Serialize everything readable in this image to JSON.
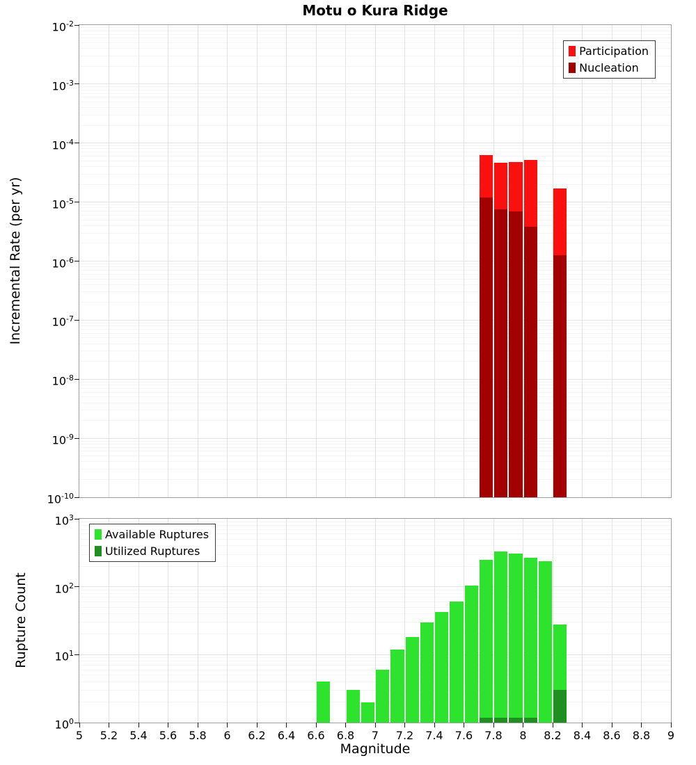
{
  "title": "Motu o Kura Ridge",
  "chart_data": [
    {
      "type": "bar",
      "title": "Motu o Kura Ridge",
      "ylabel": "Incremental Rate (per yr)",
      "xlabel": "",
      "yscale": "log",
      "ylim": [
        1e-10,
        0.01
      ],
      "xlim": [
        5,
        9
      ],
      "bar_width": 0.1,
      "grid": true,
      "legend_position": "top-right",
      "y_tick_labels": [
        "10^-2",
        "10^-3",
        "10^-4",
        "10^-5",
        "10^-6",
        "10^-7",
        "10^-8",
        "10^-9",
        "10^-10"
      ],
      "series": [
        {
          "name": "Participation",
          "slug": "participation",
          "color": "#fb1010",
          "x": [
            7.75,
            7.85,
            7.95,
            8.05,
            8.25
          ],
          "values": [
            6.2e-05,
            4.6e-05,
            4.8e-05,
            5.2e-05,
            1.7e-05
          ]
        },
        {
          "name": "Nucleation",
          "slug": "nucleation",
          "color": "#a30000",
          "x": [
            7.75,
            7.85,
            7.95,
            8.05,
            8.25
          ],
          "values": [
            1.2e-05,
            7.5e-06,
            7e-06,
            3.8e-06,
            1.25e-06
          ]
        }
      ]
    },
    {
      "type": "bar",
      "ylabel": "Rupture Count",
      "xlabel": "Magnitude",
      "yscale": "log",
      "ylim": [
        1,
        1000
      ],
      "xlim": [
        5,
        9
      ],
      "bar_width": 0.1,
      "grid": true,
      "legend_position": "top-left",
      "y_tick_labels": [
        "10^3",
        "10^2",
        "10^1",
        "10^0"
      ],
      "x_tick_step": 0.2,
      "x_tick_labels": [
        "5",
        "5.2",
        "5.4",
        "5.6",
        "5.8",
        "6",
        "6.2",
        "6.4",
        "6.6",
        "6.8",
        "7",
        "7.2",
        "7.4",
        "7.6",
        "7.8",
        "8",
        "8.2",
        "8.4",
        "8.6",
        "8.8",
        "9"
      ],
      "series": [
        {
          "name": "Available Ruptures",
          "slug": "available-ruptures",
          "color": "#2ee32e",
          "x": [
            6.65,
            6.85,
            6.95,
            7.05,
            7.15,
            7.25,
            7.35,
            7.45,
            7.55,
            7.65,
            7.75,
            7.85,
            7.95,
            8.05,
            8.15,
            8.25
          ],
          "values": [
            4,
            3,
            2,
            6,
            12,
            18,
            30,
            42,
            60,
            105,
            250,
            330,
            305,
            265,
            240,
            28
          ]
        },
        {
          "name": "Utilized Ruptures",
          "slug": "utilized-ruptures",
          "color": "#1f8f1f",
          "x": [
            7.75,
            7.85,
            7.95,
            8.05,
            8.25
          ],
          "values": [
            1,
            1,
            1,
            1,
            3
          ]
        }
      ]
    }
  ]
}
